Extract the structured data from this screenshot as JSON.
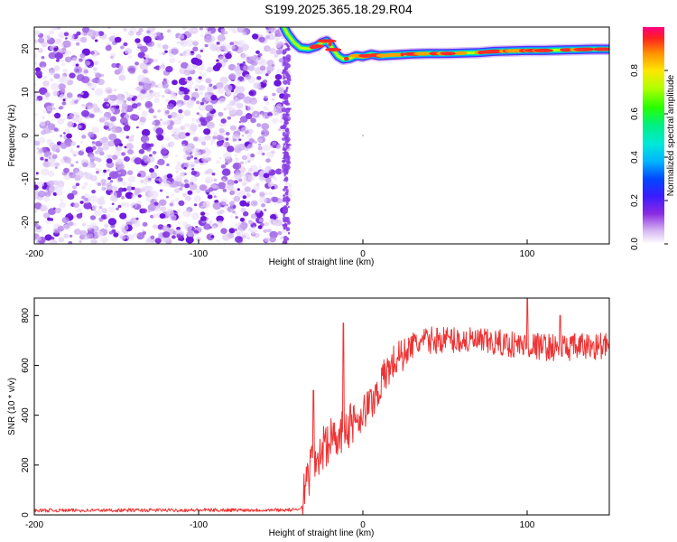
{
  "title": "S199.2025.365.18.29.R04",
  "chart_data": [
    {
      "type": "heatmap",
      "xlabel": "Height of straight line (km)",
      "ylabel": "Frequency (Hz)",
      "xlim": [
        -200,
        150
      ],
      "ylim": [
        -25,
        25
      ],
      "xticks": [
        -200,
        -100,
        0,
        100
      ],
      "yticks": [
        -20,
        -10,
        0,
        10,
        20
      ],
      "xtick_labels": [
        "-200",
        "-100",
        "0",
        "100"
      ],
      "ytick_labels": [
        "-20",
        "-10",
        "0",
        "10",
        "20"
      ],
      "noise_region_x": [
        -200,
        -45
      ],
      "signal_track": {
        "x": [
          -48,
          -46,
          -42,
          -38,
          -33,
          -28,
          -25,
          -22,
          -20,
          -18,
          -15,
          -12,
          -8,
          -4,
          0,
          5,
          10,
          20,
          30,
          40,
          50,
          60,
          70,
          80,
          90,
          100,
          110,
          120,
          130,
          140,
          150
        ],
        "y": [
          25,
          23.5,
          21.5,
          20.2,
          20.0,
          20.6,
          21.4,
          21.8,
          21.0,
          19.8,
          18.3,
          17.6,
          17.8,
          18.4,
          18.2,
          18.7,
          18.4,
          18.6,
          18.8,
          18.9,
          18.9,
          19.0,
          19.1,
          19.4,
          19.5,
          19.6,
          19.6,
          19.7,
          19.8,
          19.9,
          19.9
        ]
      },
      "colorbar": {
        "label": "Normalized spectral amplitude",
        "range": [
          0,
          1
        ],
        "ticks": [
          "0.0",
          "0.2",
          "0.4",
          "0.6",
          "0.8"
        ]
      },
      "grid": false
    },
    {
      "type": "line",
      "xlabel": "Height of straight line (km)",
      "ylabel": "SNR (10 * v/v)",
      "xlim": [
        -200,
        150
      ],
      "ylim": [
        0,
        870
      ],
      "xticks": [
        -200,
        -100,
        0,
        100
      ],
      "yticks": [
        0,
        200,
        400,
        600,
        800
      ],
      "xtick_labels": [
        "-200",
        "-100",
        "0",
        "100"
      ],
      "ytick_labels": [
        "0",
        "200",
        "400",
        "600",
        "800"
      ],
      "series": [
        {
          "color": "#ee3333",
          "trend_x": [
            -200,
            -40,
            -37,
            -35,
            -30,
            -25,
            -20,
            -15,
            -10,
            -5,
            0,
            5,
            10,
            15,
            20,
            25,
            30,
            40,
            50,
            60,
            80,
            100,
            120,
            150
          ],
          "trend_y": [
            18,
            20,
            35,
            120,
            210,
            260,
            300,
            330,
            350,
            380,
            410,
            450,
            510,
            580,
            620,
            650,
            680,
            700,
            705,
            700,
            690,
            680,
            670,
            680
          ],
          "spikes_x": [
            -30,
            -12,
            100,
            120
          ],
          "spikes_y": [
            500,
            770,
            870,
            800
          ]
        }
      ],
      "grid": false
    }
  ]
}
